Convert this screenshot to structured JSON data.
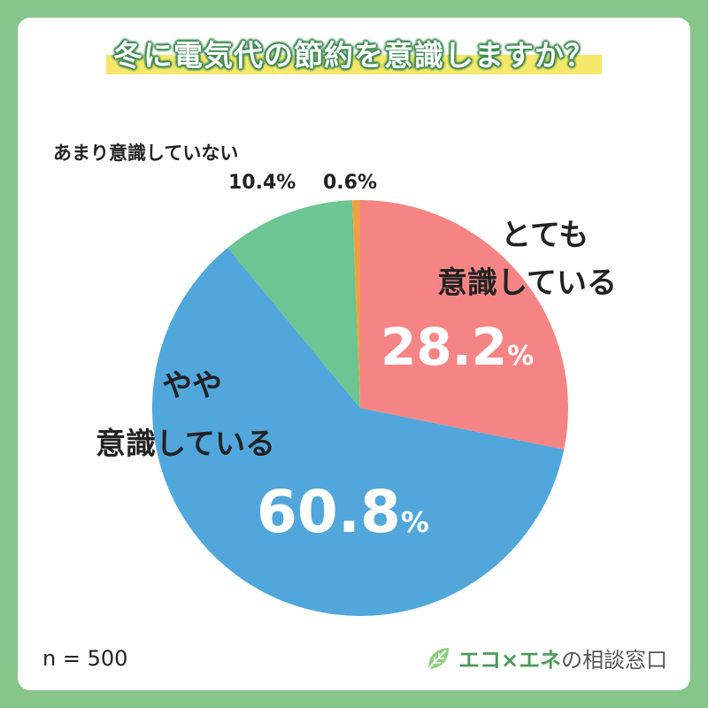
{
  "title": "冬に電気代の節約を意識しますか？",
  "sample_size": "n = 500",
  "logo": {
    "brand": "エコ×エネ",
    "suffix": "の相談窓口",
    "icon": "leaf-icon"
  },
  "labels": {
    "very_line1": "とても",
    "very_line2": "意識している",
    "very_pct": "28.2",
    "some_line1": "やや",
    "some_line2": "意識している",
    "some_pct": "60.8",
    "not_much": "あまり意識していない",
    "not_much_pct": "10.4%",
    "none_pct": "0.6%",
    "percent_sign": "%"
  },
  "colors": {
    "background": "#86c68a",
    "very": "#f58585",
    "some": "#51a7dc",
    "not_much": "#6cc592",
    "none": "#f0a040",
    "title_highlight": "#f5e76a"
  },
  "chart_data": {
    "type": "pie",
    "start": "12 o'clock",
    "direction": "clockwise",
    "slices": [
      {
        "label": "とても意識している",
        "value": 28.2,
        "color": "#f58585"
      },
      {
        "label": "やや意識している",
        "value": 60.8,
        "color": "#51a7dc"
      },
      {
        "label": "あまり意識していない",
        "value": 10.4,
        "color": "#6cc592"
      },
      {
        "label": "",
        "value": 0.6,
        "color": "#f0a040"
      }
    ]
  }
}
